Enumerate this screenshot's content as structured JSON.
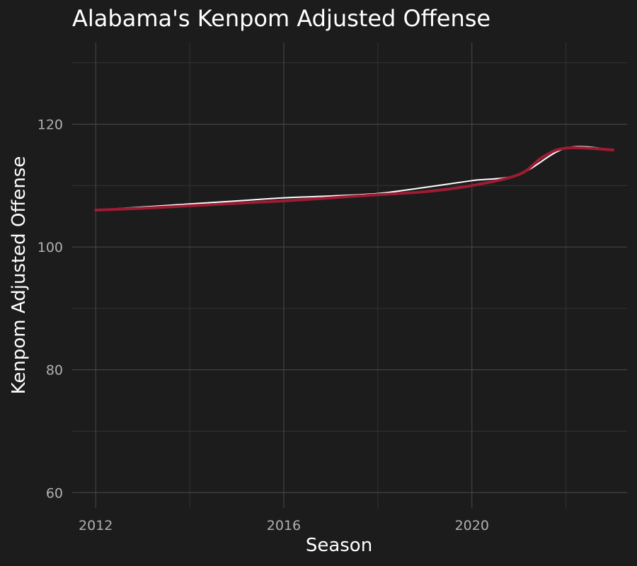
{
  "chart_data": {
    "type": "line",
    "title": "Alabama's Kenpom Adjusted Offense",
    "xlabel": "Season",
    "ylabel": "Kenpom Adjusted Offense",
    "xlim": [
      2011.5,
      2023.3
    ],
    "ylim": [
      57.5,
      133.3
    ],
    "x_ticks": [
      2012,
      2016,
      2020
    ],
    "x_minor_ticks": [
      2014,
      2018,
      2022
    ],
    "y_ticks": [
      60,
      80,
      100,
      120
    ],
    "y_minor_ticks": [
      70,
      90,
      110,
      130
    ],
    "grid": true,
    "legend": "none",
    "series": [
      {
        "style": "thin-white",
        "x": [
          2012,
          2013,
          2014,
          2015,
          2016,
          2017,
          2018,
          2019,
          2020,
          2021,
          2022,
          2023
        ],
        "y": [
          106.0,
          106.5,
          107.0,
          107.5,
          108.0,
          108.3,
          108.7,
          109.7,
          110.8,
          111.8,
          116.1,
          115.8
        ]
      },
      {
        "style": "thick-crimson",
        "x": [
          2012,
          2013,
          2014,
          2015,
          2016,
          2017,
          2018,
          2019,
          2020,
          2021,
          2021.5,
          2022,
          2023
        ],
        "y": [
          106.0,
          106.3,
          106.7,
          107.1,
          107.5,
          108.0,
          108.5,
          109.0,
          110.0,
          111.8,
          114.6,
          116.1,
          115.8
        ]
      }
    ]
  },
  "colors": {
    "background": "#1c1c1c",
    "grid_major": "#4a4a4a",
    "grid_minor": "#333333",
    "smooth_line": "#ffffff",
    "team_line": "#9e1b32",
    "tick_text": "#b0b0b0",
    "title_text": "#ffffff"
  }
}
